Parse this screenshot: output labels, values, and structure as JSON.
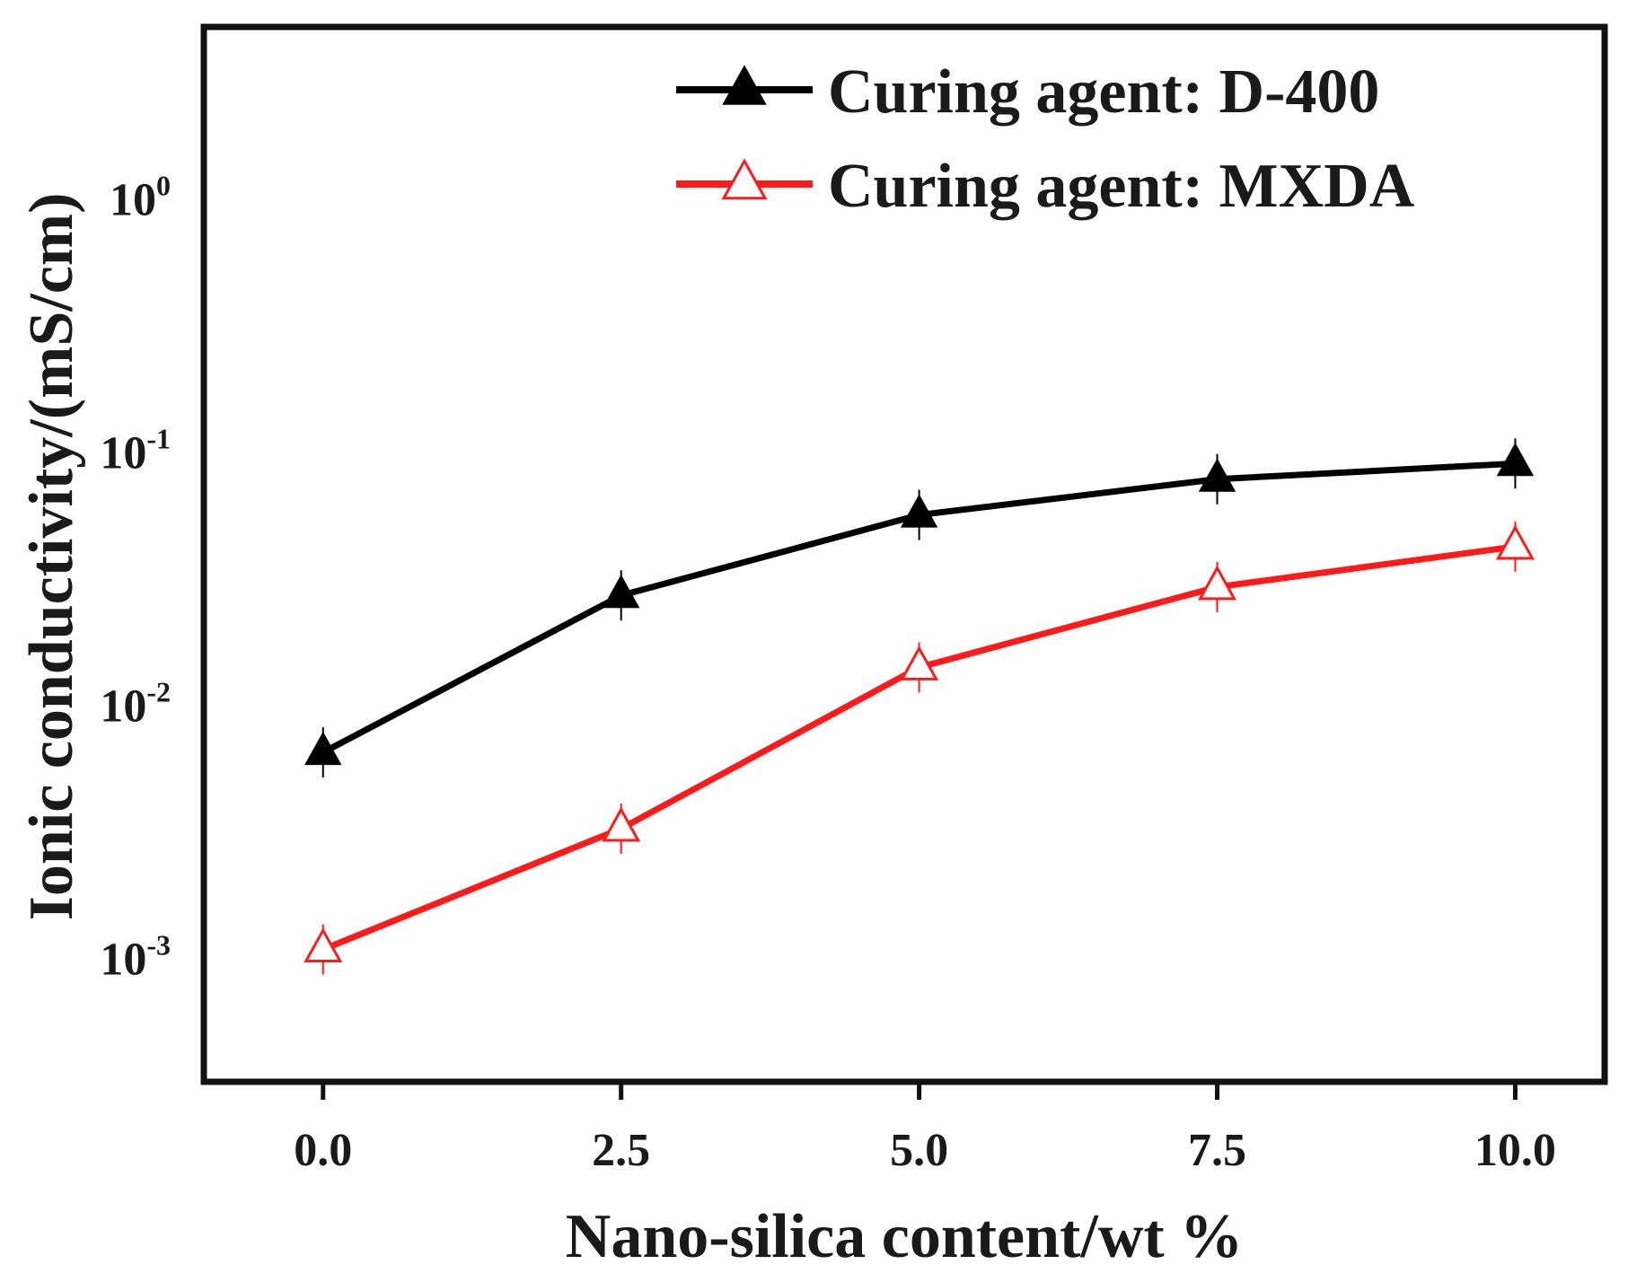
{
  "chart_data": {
    "type": "line",
    "title": "",
    "xlabel": "Nano-silica content/wt %",
    "ylabel": "Ionic conductivity/(mS/cm)",
    "yscale": "log",
    "xlim": [
      -1.0,
      10.75
    ],
    "ylim": [
      0.0003,
      4.4
    ],
    "x": [
      0.0,
      2.5,
      5.0,
      7.5,
      10.0
    ],
    "x_tick_labels": [
      "0.0",
      "2.5",
      "5.0",
      "7.5",
      "10.0"
    ],
    "y_ticks": [
      {
        "value": 0.001,
        "base": "10",
        "exp": "-3"
      },
      {
        "value": 0.01,
        "base": "10",
        "exp": "-2"
      },
      {
        "value": 0.1,
        "base": "10",
        "exp": "-1"
      },
      {
        "value": 1,
        "base": "10",
        "exp": "0"
      }
    ],
    "legend_position": "top-right",
    "series": [
      {
        "name": "Curing agent: D-400",
        "color": "#000000",
        "marker": "filled-triangle",
        "values": [
          0.006,
          0.025,
          0.052,
          0.072,
          0.083
        ]
      },
      {
        "name": "Curing agent: MXDA",
        "color": "#ff1a1a",
        "marker": "open-triangle",
        "values": [
          0.001,
          0.003,
          0.013,
          0.027,
          0.039
        ]
      }
    ]
  }
}
